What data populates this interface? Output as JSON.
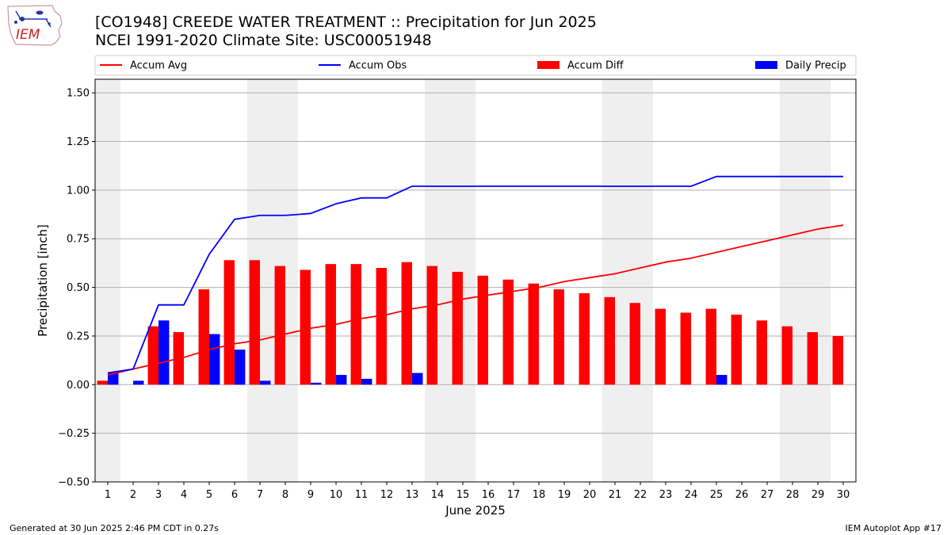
{
  "header": {
    "title_line1": "[CO1948] CREEDE WATER TREATMENT :: Precipitation for Jun 2025",
    "title_line2": "NCEI 1991-2020 Climate Site: USC00051948"
  },
  "logo": {
    "text": "IEM"
  },
  "footer": {
    "generated": "Generated at 30 Jun 2025 2:46 PM CDT in 0.27s",
    "app": "IEM Autoplot App #17"
  },
  "colors": {
    "accum_avg": "#ff0000",
    "accum_obs": "#0000ff",
    "accum_diff": "#ff0000",
    "daily_precip": "#0000ff",
    "weekend_shade": "#efefef",
    "grid": "#b0b0b0"
  },
  "chart_data": {
    "type": "bar",
    "xlabel": "June 2025",
    "ylabel": "Precipitation [inch]",
    "ylim": [
      -0.5,
      1.57
    ],
    "yticks": [
      -0.5,
      -0.25,
      0.0,
      0.25,
      0.5,
      0.75,
      1.0,
      1.25,
      1.5
    ],
    "ytick_labels": [
      "−0.50",
      "−0.25",
      "0.00",
      "0.25",
      "0.50",
      "0.75",
      "1.00",
      "1.25",
      "1.50"
    ],
    "grid": "horizontal",
    "legend_position": "top",
    "days": [
      1,
      2,
      3,
      4,
      5,
      6,
      7,
      8,
      9,
      10,
      11,
      12,
      13,
      14,
      15,
      16,
      17,
      18,
      19,
      20,
      21,
      22,
      23,
      24,
      25,
      26,
      27,
      28,
      29,
      30
    ],
    "weekend_days": [
      1,
      7,
      8,
      14,
      15,
      21,
      22,
      28,
      29
    ],
    "legend": [
      {
        "name": "Accum Avg",
        "kind": "line",
        "color": "#ff0000"
      },
      {
        "name": "Accum Obs",
        "kind": "line",
        "color": "#0000ff"
      },
      {
        "name": "Accum Diff",
        "kind": "bar",
        "color": "#ff0000"
      },
      {
        "name": "Daily Precip",
        "kind": "bar",
        "color": "#0000ff"
      }
    ],
    "series": [
      {
        "name": "Accum Avg",
        "type": "line",
        "color": "#ff0000",
        "values": [
          0.05,
          0.08,
          0.11,
          0.14,
          0.18,
          0.21,
          0.23,
          0.26,
          0.29,
          0.31,
          0.34,
          0.36,
          0.39,
          0.41,
          0.44,
          0.46,
          0.48,
          0.5,
          0.53,
          0.55,
          0.57,
          0.6,
          0.63,
          0.65,
          0.68,
          0.71,
          0.74,
          0.77,
          0.8,
          0.82
        ]
      },
      {
        "name": "Accum Obs",
        "type": "line",
        "color": "#0000ff",
        "values": [
          0.06,
          0.08,
          0.41,
          0.41,
          0.67,
          0.85,
          0.87,
          0.87,
          0.88,
          0.93,
          0.96,
          0.96,
          1.02,
          1.02,
          1.02,
          1.02,
          1.02,
          1.02,
          1.02,
          1.02,
          1.02,
          1.02,
          1.02,
          1.02,
          1.07,
          1.07,
          1.07,
          1.07,
          1.07,
          1.07
        ]
      },
      {
        "name": "Accum Diff",
        "type": "bar",
        "color": "#ff0000",
        "values": [
          0.02,
          0.0,
          0.3,
          0.27,
          0.49,
          0.64,
          0.64,
          0.61,
          0.59,
          0.62,
          0.62,
          0.6,
          0.63,
          0.61,
          0.58,
          0.56,
          0.54,
          0.52,
          0.49,
          0.47,
          0.45,
          0.42,
          0.39,
          0.37,
          0.39,
          0.36,
          0.33,
          0.3,
          0.27,
          0.25
        ]
      },
      {
        "name": "Daily Precip",
        "type": "bar",
        "color": "#0000ff",
        "values": [
          0.06,
          0.02,
          0.33,
          0.0,
          0.26,
          0.18,
          0.02,
          0.0,
          0.01,
          0.05,
          0.03,
          0.0,
          0.06,
          0.0,
          0.0,
          0.0,
          0.0,
          0.0,
          0.0,
          0.0,
          0.0,
          0.0,
          0.0,
          0.0,
          0.05,
          0.0,
          0.0,
          0.0,
          0.0,
          0.0
        ]
      }
    ]
  }
}
